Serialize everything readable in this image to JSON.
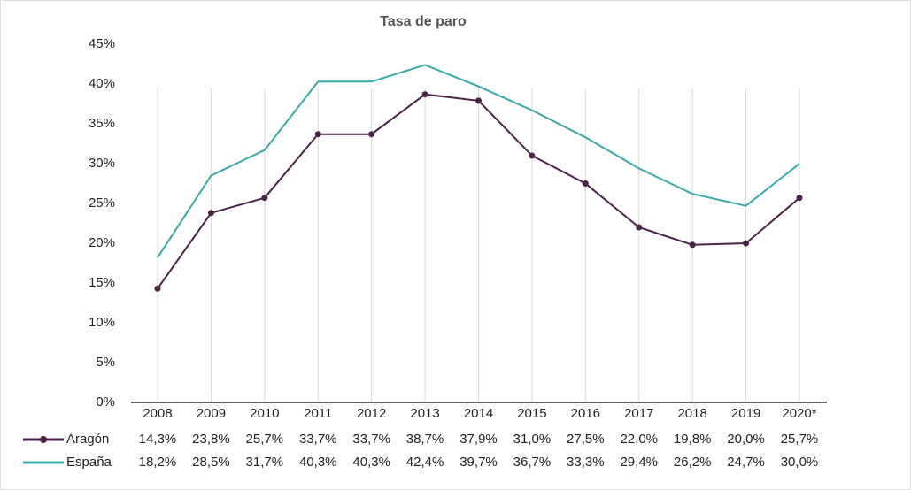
{
  "chart_data": {
    "type": "line",
    "title": "Tasa de paro",
    "categories": [
      "2008",
      "2009",
      "2010",
      "2011",
      "2012",
      "2013",
      "2014",
      "2015",
      "2016",
      "2017",
      "2018",
      "2019",
      "2020*"
    ],
    "series": [
      {
        "name": "Aragón",
        "color": "#4a2346",
        "markers": true,
        "values": [
          14.3,
          23.8,
          25.7,
          33.7,
          33.7,
          38.7,
          37.9,
          31.0,
          27.5,
          22.0,
          19.8,
          20.0,
          25.7
        ],
        "value_labels": [
          "14,3%",
          "23,8%",
          "25,7%",
          "33,7%",
          "33,7%",
          "38,7%",
          "37,9%",
          "31,0%",
          "27,5%",
          "22,0%",
          "19,8%",
          "20,0%",
          "25,7%"
        ]
      },
      {
        "name": "España",
        "color": "#3aa8a8",
        "markers": false,
        "values": [
          18.2,
          28.5,
          31.7,
          40.3,
          40.3,
          42.4,
          39.7,
          36.7,
          33.3,
          29.4,
          26.2,
          24.7,
          30.0
        ],
        "value_labels": [
          "18,2%",
          "28,5%",
          "31,7%",
          "40,3%",
          "40,3%",
          "42,4%",
          "39,7%",
          "36,7%",
          "33,3%",
          "29,4%",
          "26,2%",
          "24,7%",
          "30,0%"
        ]
      }
    ],
    "ylim": [
      0,
      45
    ],
    "yticks": [
      {
        "value": 0,
        "label": "0%"
      },
      {
        "value": 5,
        "label": "5%"
      },
      {
        "value": 10,
        "label": "10%"
      },
      {
        "value": 15,
        "label": "15%"
      },
      {
        "value": 20,
        "label": "20%"
      },
      {
        "value": 25,
        "label": "25%"
      },
      {
        "value": 30,
        "label": "30%"
      },
      {
        "value": 35,
        "label": "35%"
      },
      {
        "value": 40,
        "label": "40%"
      },
      {
        "value": 45,
        "label": "45%"
      }
    ],
    "grid": "x"
  }
}
